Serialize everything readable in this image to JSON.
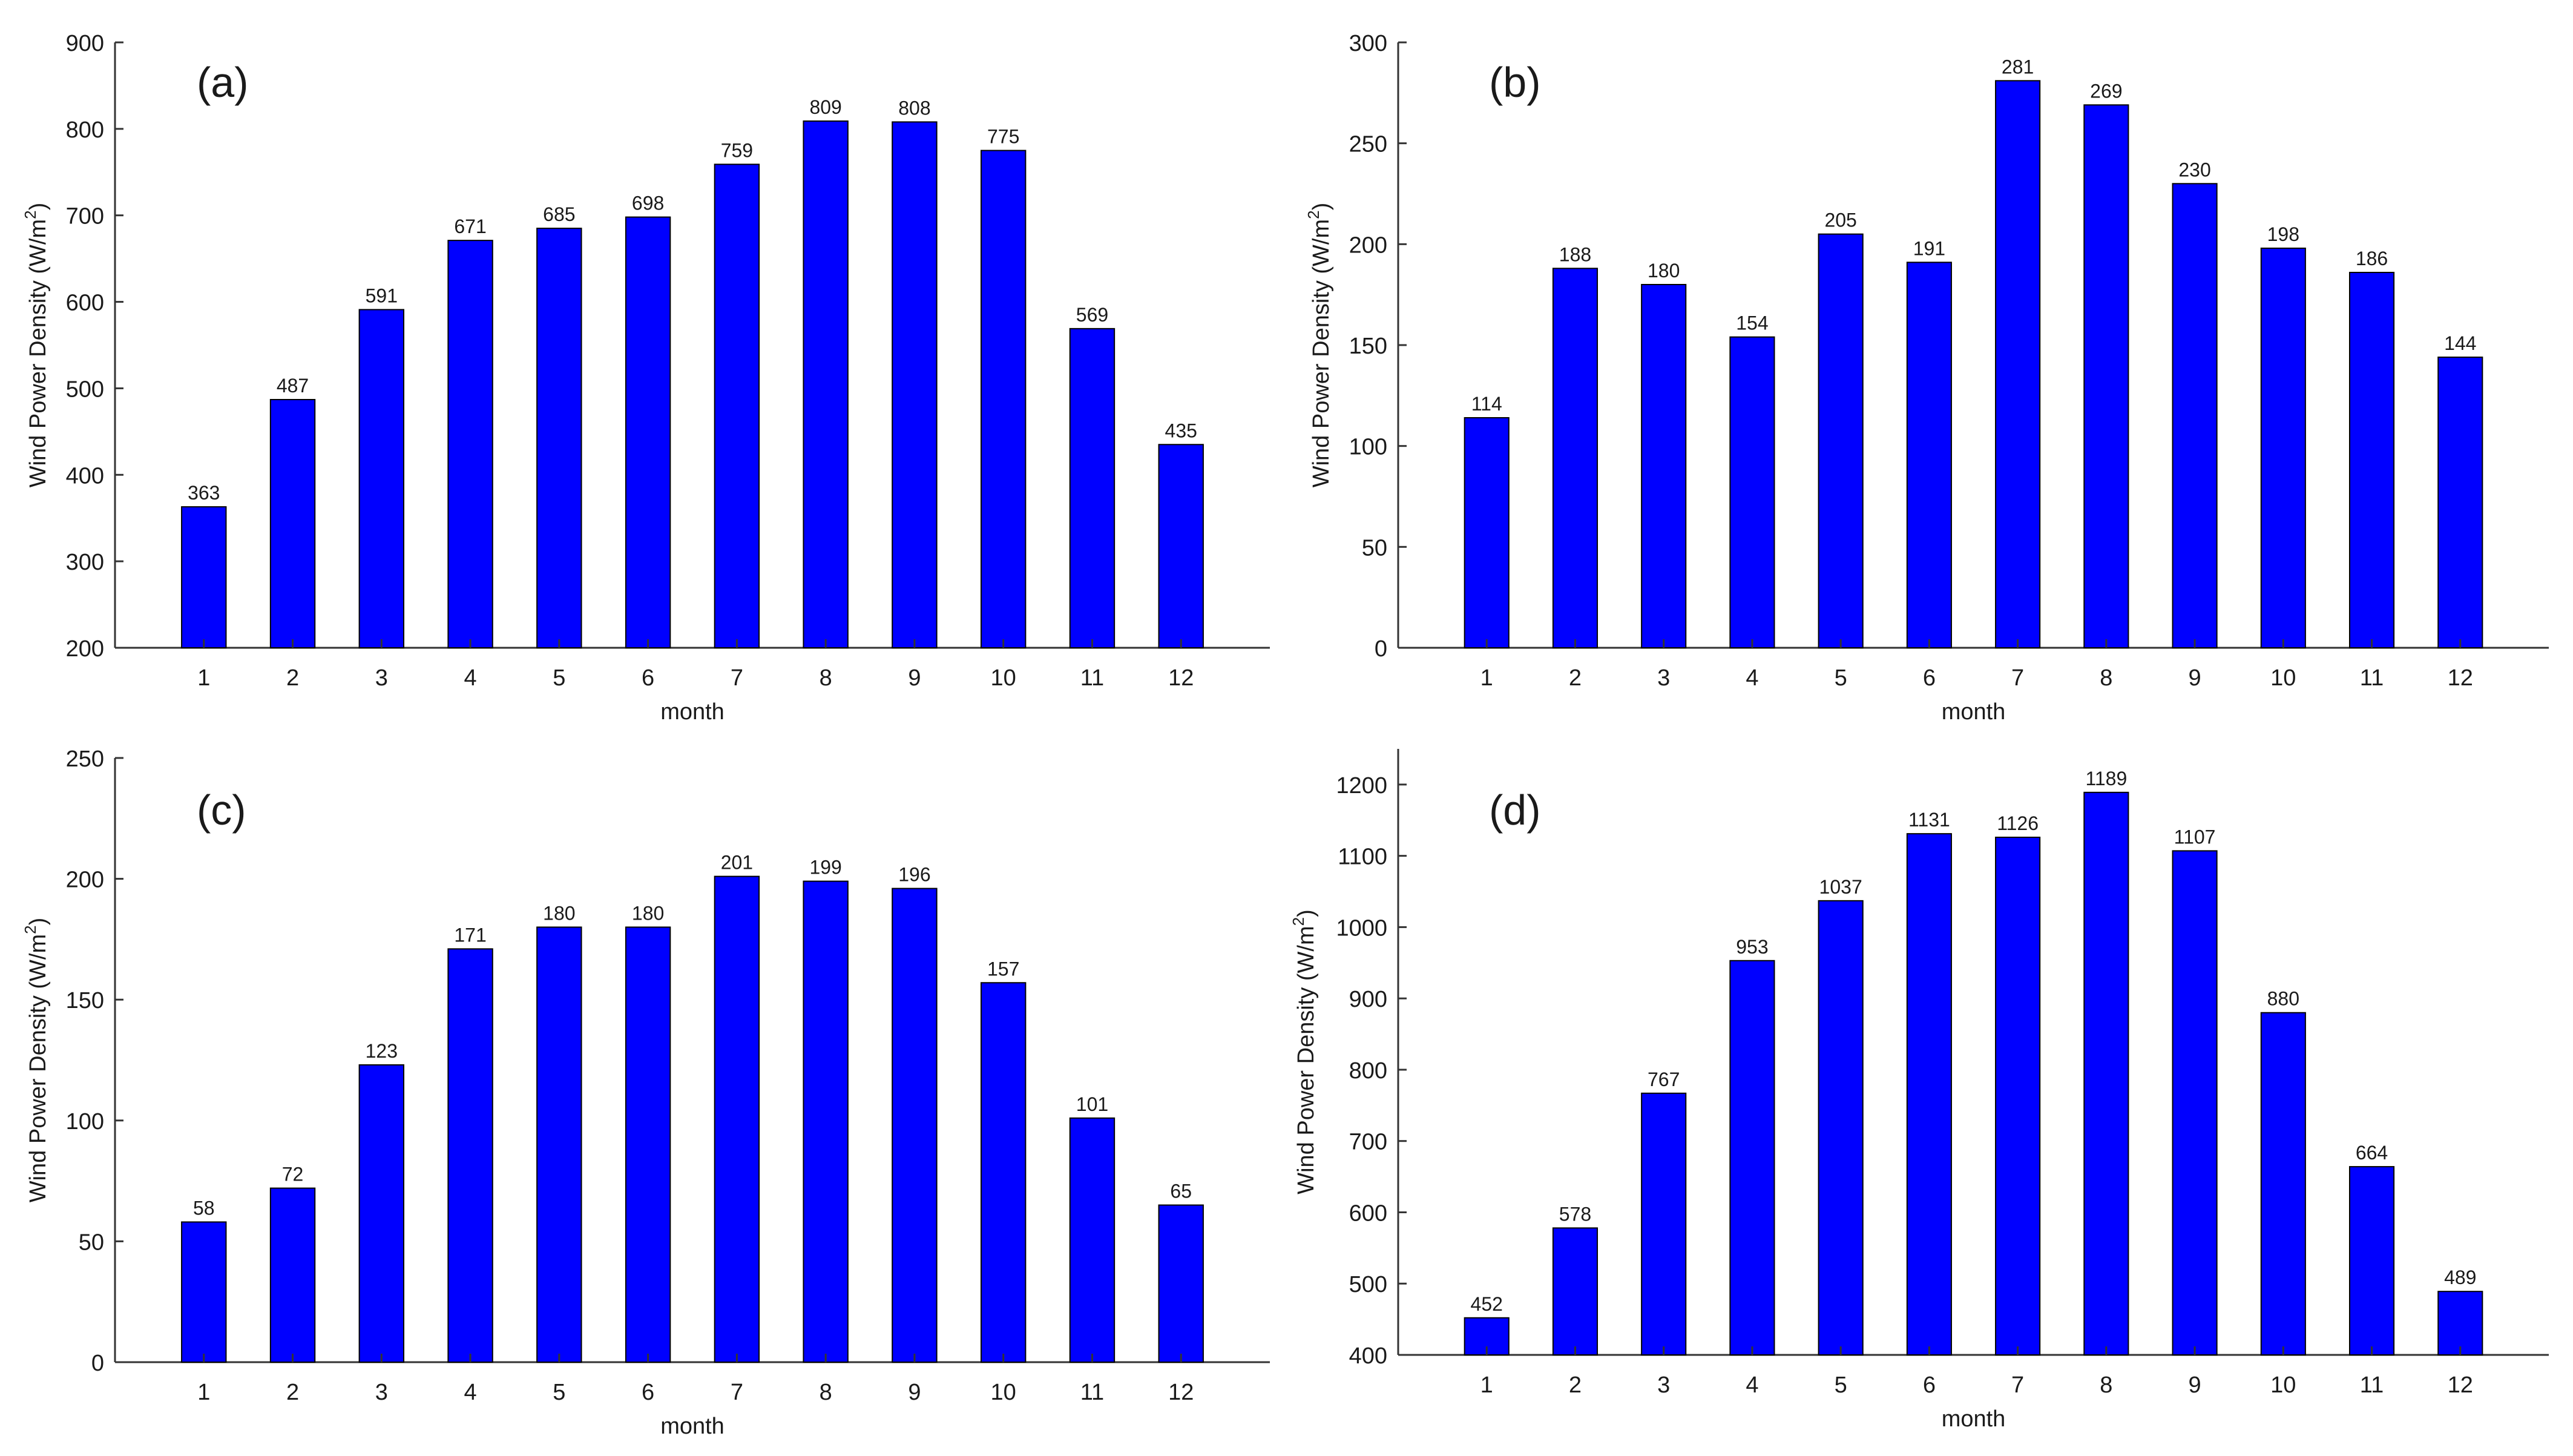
{
  "figure": {
    "panels": [
      "(a)",
      "(b)",
      "(c)",
      "(d)"
    ]
  },
  "colors": {
    "bar": "#0000ff",
    "bar_edge": "#000000",
    "axis": "#333333",
    "text": "#1a1a1a"
  },
  "chart_data": [
    {
      "type": "bar",
      "panel_label": "(a)",
      "categories": [
        "1",
        "2",
        "3",
        "4",
        "5",
        "6",
        "7",
        "8",
        "9",
        "10",
        "11",
        "12"
      ],
      "values": [
        363,
        487,
        591,
        671,
        685,
        698,
        759,
        809,
        808,
        775,
        569,
        435
      ],
      "data_labels": [
        "363",
        "487",
        "591",
        "671",
        "685",
        "698",
        "759",
        "809",
        "808",
        "775",
        "569",
        "435"
      ],
      "xlabel": "month",
      "ylabel_main": "Wind Power Density (W/m",
      "ylabel_sup": "2",
      "ylabel_end": ")",
      "ylim": [
        200,
        900
      ],
      "yticks": [
        200,
        300,
        400,
        500,
        600,
        700,
        800,
        900
      ],
      "ytick_labels": [
        "200",
        "300",
        "400",
        "500",
        "600",
        "700",
        "800",
        "900"
      ],
      "grid": false
    },
    {
      "type": "bar",
      "panel_label": "(b)",
      "categories": [
        "1",
        "2",
        "3",
        "4",
        "5",
        "6",
        "7",
        "8",
        "9",
        "10",
        "11",
        "12"
      ],
      "values": [
        114,
        188,
        180,
        154,
        205,
        191,
        281,
        269,
        230,
        198,
        186,
        144
      ],
      "data_labels": [
        "114",
        "188",
        "180",
        "154",
        "205",
        "191",
        "281",
        "269",
        "230",
        "198",
        "186",
        "144"
      ],
      "xlabel": "month",
      "ylabel_main": "Wind Power Density (W/m",
      "ylabel_sup": "2",
      "ylabel_end": ")",
      "ylim": [
        0,
        300
      ],
      "yticks": [
        0,
        50,
        100,
        150,
        200,
        250,
        300
      ],
      "ytick_labels": [
        "0",
        "50",
        "100",
        "150",
        "200",
        "250",
        "300"
      ],
      "grid": false
    },
    {
      "type": "bar",
      "panel_label": "(c)",
      "categories": [
        "1",
        "2",
        "3",
        "4",
        "5",
        "6",
        "7",
        "8",
        "9",
        "10",
        "11",
        "12"
      ],
      "values": [
        58,
        72,
        123,
        171,
        180,
        180,
        201,
        199,
        196,
        157,
        101,
        65
      ],
      "data_labels": [
        "58",
        "72",
        "123",
        "171",
        "180",
        "180",
        "201",
        "199",
        "196",
        "157",
        "101",
        "65"
      ],
      "xlabel": "month",
      "ylabel_main": "Wind Power Density (W/m",
      "ylabel_sup": "2",
      "ylabel_end": ")",
      "ylim": [
        0,
        250
      ],
      "yticks": [
        0,
        50,
        100,
        150,
        200,
        250
      ],
      "ytick_labels": [
        "0",
        "50",
        "100",
        "150",
        "200",
        "250"
      ],
      "grid": false
    },
    {
      "type": "bar",
      "panel_label": "(d)",
      "categories": [
        "1",
        "2",
        "3",
        "4",
        "5",
        "6",
        "7",
        "8",
        "9",
        "10",
        "11",
        "12"
      ],
      "values": [
        452,
        578,
        767,
        953,
        1037,
        1131,
        1126,
        1189,
        1107,
        880,
        664,
        489
      ],
      "data_labels": [
        "452",
        "578",
        "767",
        "953",
        "1037",
        "1131",
        "1126",
        "1189",
        "1107",
        "880",
        "664",
        "489"
      ],
      "xlabel": "month",
      "ylabel_main": "Wind Power Density (W/m",
      "ylabel_sup": "2",
      "ylabel_end": ")",
      "ylim": [
        400,
        1250
      ],
      "yticks": [
        400,
        500,
        600,
        700,
        800,
        900,
        1000,
        1100,
        1200
      ],
      "ytick_labels": [
        "400",
        "500",
        "600",
        "700",
        "800",
        "900",
        "1000",
        "1100",
        "1200"
      ],
      "grid": false
    }
  ]
}
